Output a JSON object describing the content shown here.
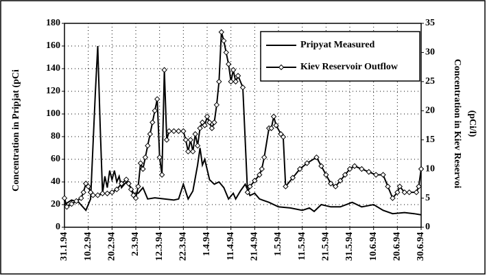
{
  "chart_data": {
    "type": "line",
    "y_label": "Concentration in Pripjat  (pCi",
    "y2_label": [
      "Concentration in Kiev Reservoi",
      "(pCi/l)"
    ],
    "xlim": [
      "31.1.94",
      "30.6.94"
    ],
    "xticks": [
      "31.1.94",
      "10.2.94",
      "20.2.94",
      "2.3.94",
      "12.3.94",
      "22.3.94",
      "1.4.94",
      "11.4.94",
      "21.4.94",
      "1.5.94",
      "11.5.94",
      "21.5.94",
      "31.5.94",
      "10.6.94",
      "20.6.94",
      "30.6.94"
    ],
    "ylim": [
      0,
      180
    ],
    "yticks": [
      0,
      20,
      40,
      60,
      80,
      100,
      120,
      140,
      160,
      180
    ],
    "y2lim": [
      0,
      35
    ],
    "y2ticks": [
      0,
      5,
      10,
      15,
      20,
      25,
      30,
      35
    ],
    "grid": true,
    "legend": "upper right",
    "series": [
      {
        "name": "Pripyat Measured",
        "color": "#000000",
        "axis": "y",
        "x": [
          "31.1.94",
          "3.2.94",
          "6.2.94",
          "9.2.94",
          "11.2.94",
          "13.2.94",
          "14.2.94",
          "15.2.94",
          "16.2.94",
          "17.2.94",
          "18.2.94",
          "19.2.94",
          "20.2.94",
          "21.2.94",
          "22.2.94",
          "23.2.94",
          "24.2.94",
          "26.2.94",
          "28.2.94",
          "1.3.94",
          "3.3.94",
          "5.3.94",
          "7.3.94",
          "10.3.94",
          "14.3.94",
          "18.3.94",
          "20.3.94",
          "22.3.94",
          "24.3.94",
          "26.3.94",
          "28.3.94",
          "29.3.94",
          "30.3.94",
          "31.3.94",
          "2.4.94",
          "4.4.94",
          "6.4.94",
          "8.4.94",
          "10.4.94",
          "12.4.94",
          "13.4.94",
          "15.4.94",
          "17.4.94",
          "19.4.94",
          "21.4.94",
          "23.4.94",
          "27.4.94",
          "1.5.94",
          "6.5.94",
          "11.5.94",
          "14.5.94",
          "16.5.94",
          "19.5.94",
          "23.5.94",
          "27.5.94",
          "1.6.94",
          "5.6.94",
          "10.6.94",
          "14.6.94",
          "18.6.94",
          "23.6.94",
          "27.6.94",
          "30.6.94"
        ],
        "values": [
          20,
          24,
          22,
          15,
          25,
          120,
          160,
          90,
          30,
          45,
          35,
          50,
          42,
          50,
          40,
          45,
          35,
          40,
          35,
          30,
          30,
          35,
          25,
          26,
          25,
          24,
          25,
          38,
          25,
          32,
          55,
          70,
          55,
          60,
          42,
          38,
          40,
          35,
          25,
          30,
          25,
          32,
          38,
          28,
          30,
          25,
          22,
          18,
          17,
          15,
          17,
          14,
          20,
          18,
          18,
          22,
          18,
          20,
          15,
          12,
          13,
          12,
          11
        ]
      },
      {
        "name": "Kiev Reservoir Outflow",
        "color": "#000000",
        "axis": "y2",
        "marker": "diamond",
        "x": [
          "31.1.94",
          "1.2.94",
          "3.2.94",
          "5.2.94",
          "7.2.94",
          "8.2.94",
          "9.2.94",
          "10.2.94",
          "11.2.94",
          "12.2.94",
          "14.2.94",
          "16.2.94",
          "18.2.94",
          "20.2.94",
          "22.2.94",
          "24.2.94",
          "26.2.94",
          "27.2.94",
          "28.2.94",
          "1.3.94",
          "2.3.94",
          "3.3.94",
          "4.3.94",
          "5.3.94",
          "6.3.94",
          "7.3.94",
          "8.3.94",
          "9.3.94",
          "10.3.94",
          "11.3.94",
          "12.3.94",
          "13.3.94",
          "14.3.94",
          "15.3.94",
          "16.3.94",
          "18.3.94",
          "20.3.94",
          "22.3.94",
          "23.3.94",
          "24.3.94",
          "25.3.94",
          "26.3.94",
          "27.3.94",
          "28.3.94",
          "29.3.94",
          "30.3.94",
          "31.3.94",
          "1.4.94",
          "2.4.94",
          "3.4.94",
          "4.4.94",
          "5.4.94",
          "6.4.94",
          "7.4.94",
          "8.4.94",
          "9.4.94",
          "10.4.94",
          "11.4.94",
          "12.4.94",
          "13.4.94",
          "14.4.94",
          "16.4.94",
          "18.4.94",
          "19.4.94",
          "21.4.94",
          "23.4.94",
          "24.4.94",
          "25.4.94",
          "27.4.94",
          "28.4.94",
          "29.4.94",
          "30.4.94",
          "2.5.94",
          "3.5.94",
          "4.5.94",
          "7.5.94",
          "10.5.94",
          "13.5.94",
          "17.5.94",
          "19.5.94",
          "21.5.94",
          "23.5.94",
          "25.5.94",
          "27.5.94",
          "29.5.94",
          "31.5.94",
          "2.6.94",
          "5.6.94",
          "8.6.94",
          "11.6.94",
          "14.6.94",
          "16.6.94",
          "18.6.94",
          "20.6.94",
          "21.6.94",
          "23.6.94",
          "25.6.94",
          "28.6.94",
          "29.6.94",
          "30.6.94"
        ],
        "values": [
          5,
          3.5,
          4,
          4.5,
          5,
          6,
          7.5,
          7,
          6,
          5.5,
          5.5,
          5.8,
          5.8,
          6,
          6.5,
          7.5,
          8.2,
          7.5,
          6.5,
          5.5,
          5,
          7,
          11,
          10,
          12,
          14,
          16,
          18,
          20,
          22,
          12,
          9,
          27,
          15,
          16.5,
          16.5,
          16.5,
          16.5,
          15,
          13,
          15,
          13,
          16,
          14,
          17,
          18,
          17.5,
          19,
          18,
          17,
          18,
          21,
          25,
          33.5,
          32,
          30,
          28,
          25,
          27,
          25,
          26,
          24,
          6,
          7,
          8,
          9,
          10,
          12,
          17,
          17,
          19,
          17.5,
          16,
          15.5,
          7,
          8.5,
          10,
          11,
          12,
          10.5,
          9,
          7.5,
          7,
          8,
          9,
          10,
          10.5,
          10,
          9.5,
          9,
          9,
          7,
          5,
          6,
          7,
          6,
          6,
          6,
          7,
          10
        ]
      }
    ]
  }
}
